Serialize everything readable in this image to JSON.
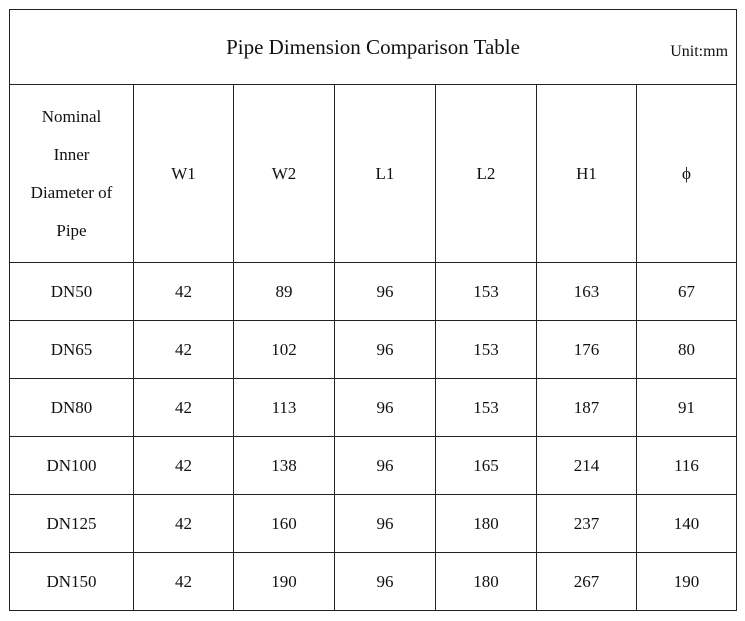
{
  "title": "Pipe Dimension Comparison Table",
  "unit": "Unit:mm",
  "table": {
    "columns": [
      "Nominal Inner Diameter of Pipe",
      "W1",
      "W2",
      "L1",
      "L2",
      "H1",
      "ϕ"
    ],
    "rows": [
      [
        "DN50",
        "42",
        "89",
        "96",
        "153",
        "163",
        "67"
      ],
      [
        "DN65",
        "42",
        "102",
        "96",
        "153",
        "176",
        "80"
      ],
      [
        "DN80",
        "42",
        "113",
        "96",
        "153",
        "187",
        "91"
      ],
      [
        "DN100",
        "42",
        "138",
        "96",
        "165",
        "214",
        "116"
      ],
      [
        "DN125",
        "42",
        "160",
        "96",
        "180",
        "237",
        "140"
      ],
      [
        "DN150",
        "42",
        "190",
        "96",
        "180",
        "267",
        "190"
      ]
    ]
  }
}
